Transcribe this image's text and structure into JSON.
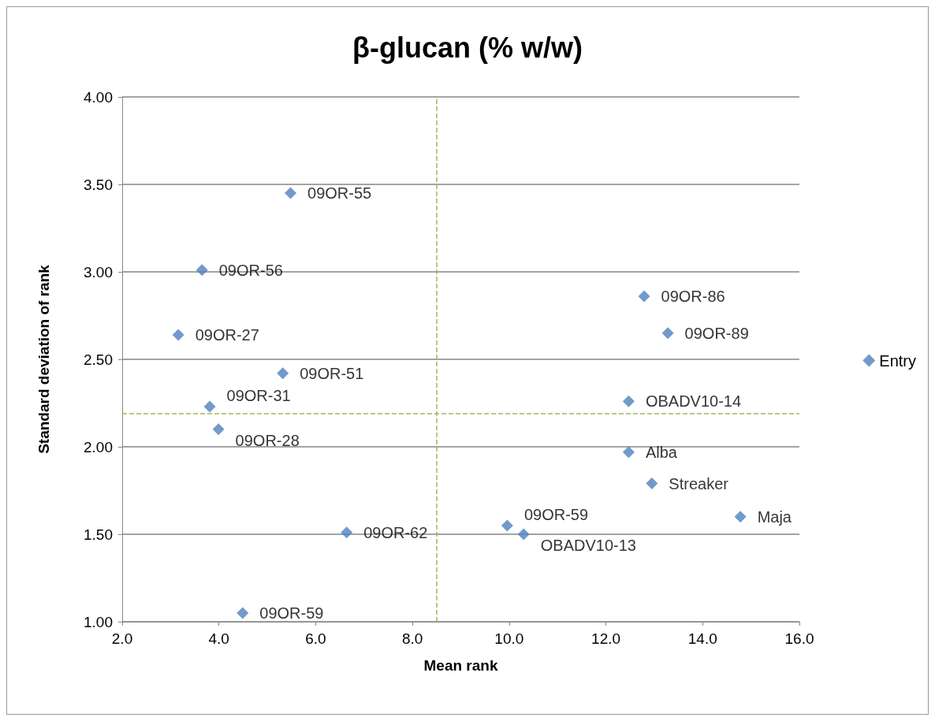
{
  "chart_data": {
    "type": "scatter",
    "title": "β-glucan (% w/w)",
    "xlabel": "Mean rank",
    "ylabel": "Standard deviation of rank",
    "series": [
      {
        "name": "Entry",
        "color": "#4f81bd",
        "x": [
          5.48,
          3.65,
          3.16,
          5.32,
          3.81,
          3.99,
          6.64,
          4.49,
          9.96,
          10.3,
          12.79,
          13.28,
          12.47,
          12.47,
          12.95,
          14.78
        ],
        "values": [
          3.45,
          3.01,
          2.64,
          2.42,
          2.23,
          2.1,
          1.51,
          1.05,
          1.55,
          1.5,
          2.86,
          2.65,
          2.26,
          1.97,
          1.79,
          1.6
        ],
        "value_labels": [
          "09OR-55",
          "09OR-56",
          "09OR-27",
          "09OR-51",
          "09OR-31",
          "09OR-28",
          "09OR-62",
          "09OR-59",
          "09OR-59",
          "OBADV10-13",
          "09OR-86",
          "09OR-89",
          "OBADV10-14",
          "Alba",
          "Streaker",
          "Maja"
        ]
      }
    ],
    "xlim": [
      2,
      16
    ],
    "xticks": [
      {
        "value": 2,
        "label": "2.0"
      },
      {
        "value": 4,
        "label": "4.0"
      },
      {
        "value": 6,
        "label": "6.0"
      },
      {
        "value": 8,
        "label": "8.0"
      },
      {
        "value": 10,
        "label": "10.0"
      },
      {
        "value": 12,
        "label": "12.0"
      },
      {
        "value": 14,
        "label": "14.0"
      },
      {
        "value": 16,
        "label": "16.0"
      }
    ],
    "ylim": [
      1,
      4
    ],
    "yticks": [
      {
        "value": 1,
        "label": "1.00"
      },
      {
        "value": 1.5,
        "label": "1.50"
      },
      {
        "value": 2,
        "label": "2.00"
      },
      {
        "value": 2.5,
        "label": "2.50"
      },
      {
        "value": 3,
        "label": "3.00"
      },
      {
        "value": 3.5,
        "label": "3.50"
      },
      {
        "value": 4,
        "label": "4.00"
      }
    ],
    "ref_lines": [
      {
        "axis": "x",
        "value": 8.5,
        "color": "#9bbb59",
        "line_style": "dashed"
      },
      {
        "axis": "y",
        "value": 2.19,
        "color": "#9bbb59",
        "line_style": "dashed"
      }
    ],
    "grid": "y",
    "legend": "right",
    "marker": "diamond"
  }
}
